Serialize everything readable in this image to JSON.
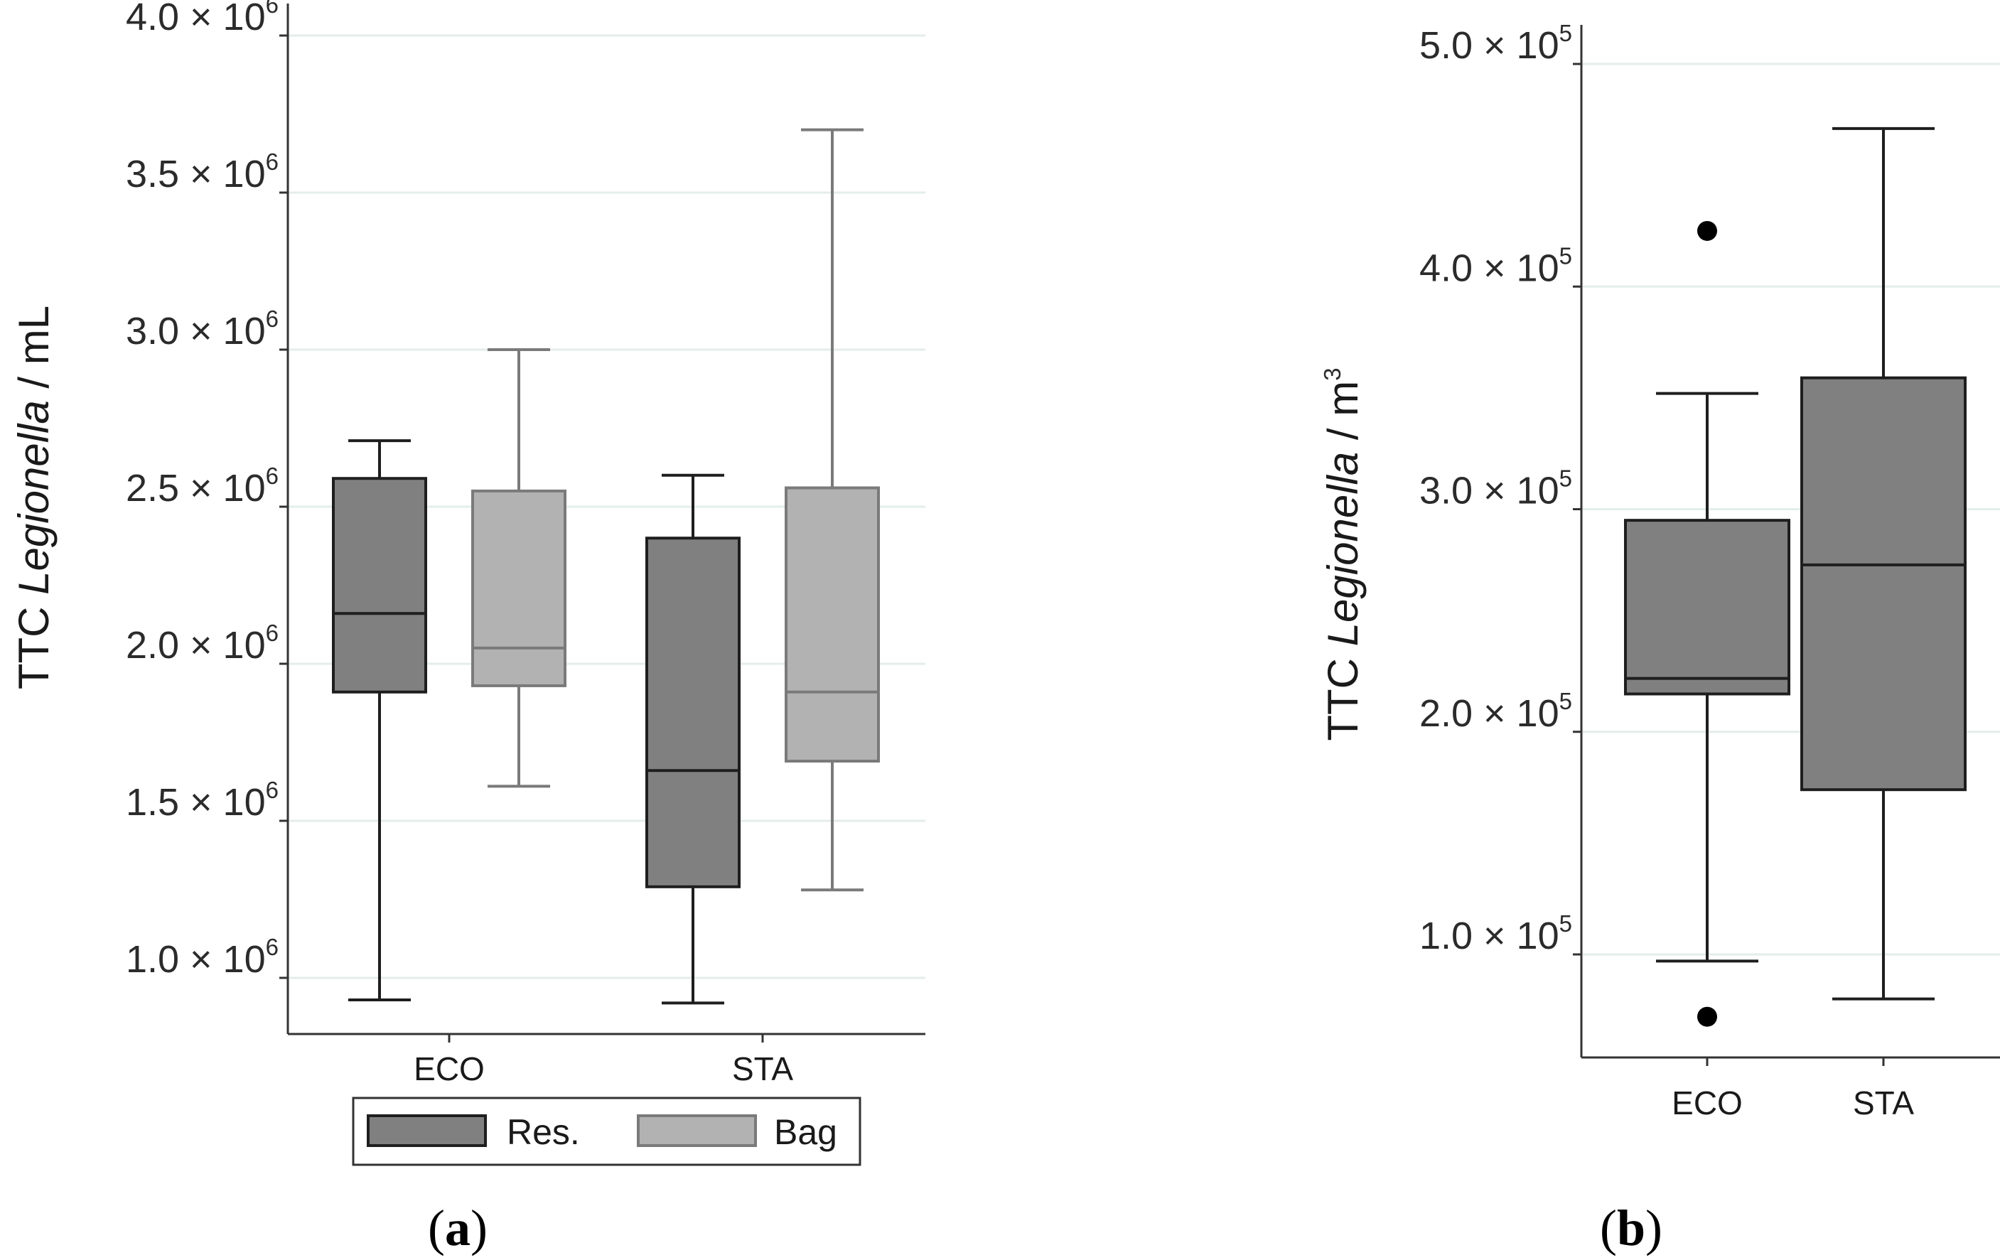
{
  "chart_data": [
    {
      "type": "boxplot",
      "panel_label": "a",
      "ylabel": {
        "prefix": "TTC ",
        "italic": "Legionella",
        "suffix": " / mL"
      },
      "ylim": [
        900000,
        4050000
      ],
      "yticks": [
        {
          "value": 1000000,
          "mantissa": "1.0",
          "times": " × 10",
          "exp": "6"
        },
        {
          "value": 1500000,
          "mantissa": "1.5",
          "times": " × 10",
          "exp": "6"
        },
        {
          "value": 2000000,
          "mantissa": "2.0",
          "times": " × 10",
          "exp": "6"
        },
        {
          "value": 2500000,
          "mantissa": "2.5",
          "times": " × 10",
          "exp": "6"
        },
        {
          "value": 3000000,
          "mantissa": "3.0",
          "times": " × 10",
          "exp": "6"
        },
        {
          "value": 3500000,
          "mantissa": "3.5",
          "times": " × 10",
          "exp": "6"
        },
        {
          "value": 4000000,
          "mantissa": "4.0",
          "times": " × 10",
          "exp": "6"
        }
      ],
      "categories": [
        "ECO",
        "STA"
      ],
      "series": [
        {
          "name": "Res.",
          "color": "#808080",
          "stroke": "#1e1e1e",
          "boxes": [
            {
              "category": "ECO",
              "min": 930000,
              "q1": 1910000,
              "median": 2160000,
              "q3": 2590000,
              "max": 2710000
            },
            {
              "category": "STA",
              "min": 920000,
              "q1": 1290000,
              "median": 1660000,
              "q3": 2400000,
              "max": 2600000
            }
          ]
        },
        {
          "name": "Bag",
          "color": "#b2b2b2",
          "stroke": "#7a7a7a",
          "boxes": [
            {
              "category": "ECO",
              "min": 1610000,
              "q1": 1930000,
              "median": 2050000,
              "q3": 2550000,
              "max": 3000000
            },
            {
              "category": "STA",
              "min": 1280000,
              "q1": 1690000,
              "median": 1910000,
              "q3": 2560000,
              "max": 3700000
            }
          ]
        }
      ],
      "legend": {
        "position": "bottom",
        "entries": [
          "Res.",
          "Bag"
        ]
      },
      "grid": "horizontal"
    },
    {
      "type": "boxplot",
      "panel_label": "b",
      "ylabel": {
        "prefix": "TTC ",
        "italic": "Legionella",
        "suffix": " / m",
        "sup": "3"
      },
      "ylim": [
        60000,
        520000
      ],
      "yticks": [
        {
          "value": 100000,
          "mantissa": "1.0",
          "times": " × 10",
          "exp": "5"
        },
        {
          "value": 200000,
          "mantissa": "2.0",
          "times": " × 10",
          "exp": "5"
        },
        {
          "value": 300000,
          "mantissa": "3.0",
          "times": " × 10",
          "exp": "5"
        },
        {
          "value": 400000,
          "mantissa": "4.0",
          "times": " × 10",
          "exp": "5"
        },
        {
          "value": 500000,
          "mantissa": "5.0",
          "times": " × 10",
          "exp": "5"
        }
      ],
      "categories": [
        "ECO",
        "STA"
      ],
      "series": [
        {
          "name": "",
          "color": "#808080",
          "stroke": "#1e1e1e",
          "boxes": [
            {
              "category": "ECO",
              "min": 97000,
              "q1": 217000,
              "median": 224000,
              "q3": 295000,
              "max": 352000,
              "outliers": [
                425000,
                72000
              ]
            },
            {
              "category": "STA",
              "min": 80000,
              "q1": 174000,
              "median": 275000,
              "q3": 359000,
              "max": 471000,
              "outliers": []
            }
          ]
        }
      ],
      "grid": "horizontal"
    }
  ]
}
